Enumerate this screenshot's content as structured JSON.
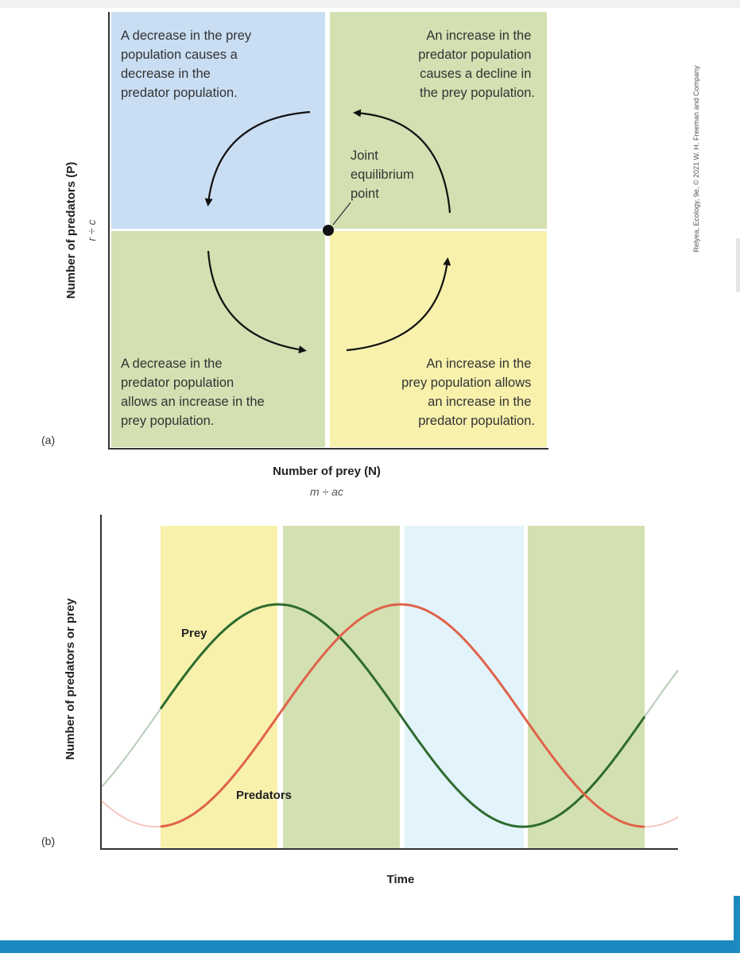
{
  "panel_a": {
    "tag": "(a)",
    "quadrants": {
      "top_left": [
        "A decrease in the prey",
        "population causes a",
        "decrease in the",
        "predator population."
      ],
      "top_right": [
        "An increase in the",
        "predator population",
        "causes a decline in",
        "the prey population."
      ],
      "bottom_left": [
        "A decrease in the",
        "predator population",
        "allows an increase in the",
        "prey population."
      ],
      "bottom_right": [
        "An increase in the",
        "prey population allows",
        "an increase in the",
        "predator population."
      ]
    },
    "equilibrium_label": [
      "Joint",
      "equilibrium",
      "point"
    ],
    "y_axis_title": "Number of predators (P)",
    "y_axis_sub": "r ÷ c",
    "x_axis_title": "Number of prey (N)",
    "x_axis_sub": "m ÷ ac",
    "colors": {
      "blue": "#c9def3",
      "green": "#d3e0b2",
      "yellow": "#f7f1ac"
    }
  },
  "panel_b": {
    "tag": "(b)",
    "y_axis_title": "Number of predators or prey",
    "x_axis_title": "Time",
    "prey_label": "Prey",
    "predators_label": "Predators",
    "band_colors": [
      "#f7f1ac",
      "#d3e0b2",
      "#e3f3fb",
      "#d3e0b2"
    ],
    "prey_color": "#2e6b2e",
    "predator_color": "#e0624a"
  },
  "credit": "Relyea, Ecology, 9e, © 2021 W. H. Freeman and Company"
}
